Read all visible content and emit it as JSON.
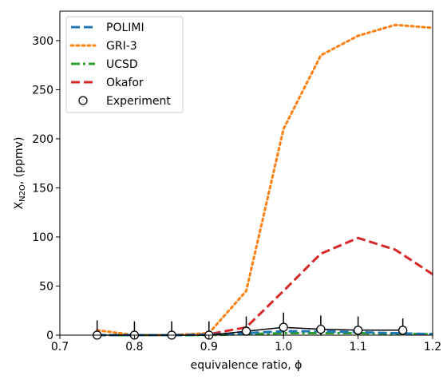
{
  "chart_data": {
    "type": "line",
    "xlabel": "equivalence ratio, ϕ",
    "ylabel": {
      "main": "X",
      "sub": "N2O",
      "suffix": ", (ppmv)"
    },
    "xlim": [
      0.7,
      1.2
    ],
    "ylim": [
      0,
      330
    ],
    "xticks": [
      0.7,
      0.8,
      0.9,
      1.0,
      1.1,
      1.2
    ],
    "xtick_labels": [
      "0.7",
      "0.8",
      "0.9",
      "1.0",
      "1.1",
      "1.2"
    ],
    "yticks": [
      0,
      50,
      100,
      150,
      200,
      250,
      300
    ],
    "ytick_labels": [
      "0",
      "50",
      "100",
      "150",
      "200",
      "250",
      "300"
    ],
    "grid": false,
    "legend_position": "top-left",
    "series": [
      {
        "name": "POLIMI",
        "color": "#1f77b4",
        "style": "dashed",
        "x": [
          0.75,
          0.8,
          0.85,
          0.9,
          0.95,
          1.0,
          1.05,
          1.1,
          1.15,
          1.2
        ],
        "y": [
          0,
          0,
          0,
          0.5,
          2,
          4,
          4,
          3,
          2,
          1
        ]
      },
      {
        "name": "GRI-3",
        "color": "#ff7f0e",
        "style": "dotted",
        "x": [
          0.75,
          0.8,
          0.85,
          0.9,
          0.95,
          1.0,
          1.05,
          1.1,
          1.15,
          1.2
        ],
        "y": [
          5,
          0,
          0,
          2,
          45,
          210,
          285,
          305,
          316,
          313
        ]
      },
      {
        "name": "UCSD",
        "color": "#2ca02c",
        "style": "dashdot",
        "x": [
          0.75,
          0.8,
          0.85,
          0.9,
          0.95,
          1.0,
          1.05,
          1.1,
          1.15,
          1.2
        ],
        "y": [
          0,
          0,
          0,
          0,
          1,
          2,
          2,
          2,
          1.5,
          1
        ]
      },
      {
        "name": "Okafor",
        "color": "#d62728",
        "style": "dashed",
        "x": [
          0.75,
          0.8,
          0.85,
          0.9,
          0.95,
          1.0,
          1.05,
          1.1,
          1.15,
          1.2
        ],
        "y": [
          0,
          0,
          0,
          1,
          8,
          45,
          83,
          99,
          87,
          62
        ]
      },
      {
        "name": "Experiment",
        "color": "#000000",
        "style": "markers",
        "x": [
          0.75,
          0.8,
          0.85,
          0.9,
          0.95,
          1.0,
          1.05,
          1.1,
          1.16
        ],
        "y": [
          0,
          0,
          0,
          0,
          4,
          8,
          6,
          5,
          5
        ],
        "yerr": [
          15,
          14,
          14,
          14,
          15,
          15,
          14,
          14,
          12
        ]
      }
    ]
  }
}
